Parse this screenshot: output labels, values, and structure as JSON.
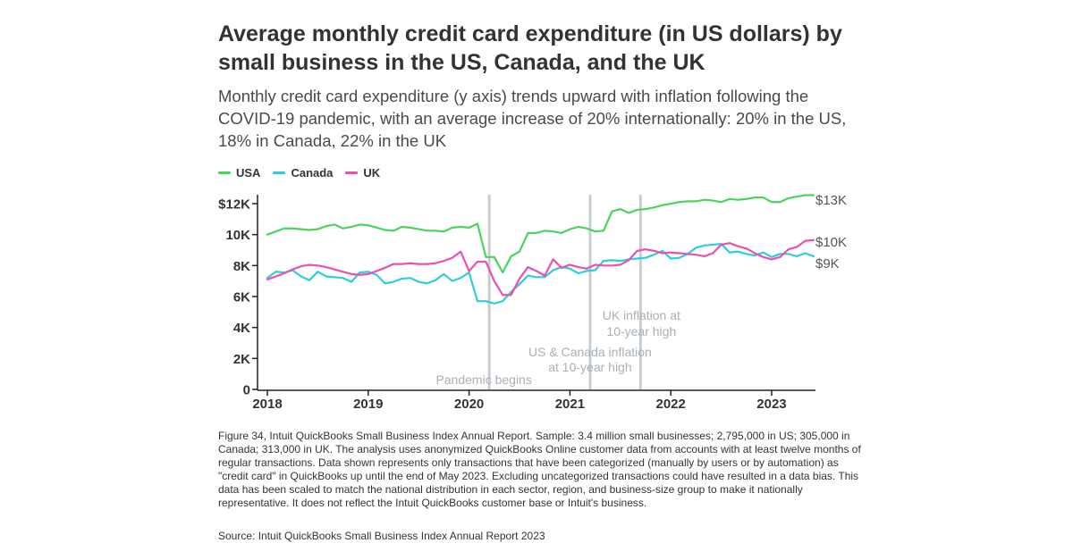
{
  "header": {
    "title": "Average monthly credit card expenditure (in US dollars) by small business in the US, Canada, and the UK",
    "subtitle": "Monthly credit card expenditure (y axis) trends upward with inflation following the COVID-19 pandemic, with an average increase of 20% internationally: 20% in the US, 18% in Canada, 22% in the UK"
  },
  "colors": {
    "USA": "#4cd35c",
    "Canada": "#2ccfd8",
    "UK": "#ea4fb2",
    "event_line": "#c7ccd1",
    "axis": "#222222",
    "annotation_text": "#a9b0b6"
  },
  "chart_data": {
    "type": "line",
    "x_unit": "month",
    "x_start": "2018-01",
    "x_end": "2023-05",
    "xlim": [
      2018.0,
      2023.417
    ],
    "ylim": [
      0,
      12000
    ],
    "x_ticks": [
      {
        "value": 2018,
        "label": "2018"
      },
      {
        "value": 2019,
        "label": "2019"
      },
      {
        "value": 2020,
        "label": "2020"
      },
      {
        "value": 2021,
        "label": "2021"
      },
      {
        "value": 2022,
        "label": "2022"
      },
      {
        "value": 2023,
        "label": "2023"
      }
    ],
    "y_ticks": [
      {
        "value": 0,
        "label": "0"
      },
      {
        "value": 2000,
        "label": "2K"
      },
      {
        "value": 4000,
        "label": "4K"
      },
      {
        "value": 6000,
        "label": "6K"
      },
      {
        "value": 8000,
        "label": "8K"
      },
      {
        "value": 10000,
        "label": "10K"
      },
      {
        "value": 12000,
        "label": "$12K"
      }
    ],
    "series": [
      {
        "name": "USA",
        "end_label": "$13K",
        "values": [
          10000,
          10200,
          10400,
          10400,
          10350,
          10300,
          10350,
          10550,
          10650,
          10400,
          10500,
          10650,
          10600,
          10450,
          10300,
          10250,
          10500,
          10450,
          10350,
          10250,
          10250,
          10200,
          10450,
          10500,
          10450,
          10700,
          8550,
          8550,
          7550,
          8600,
          8900,
          10100,
          10100,
          10250,
          10200,
          10100,
          10350,
          10500,
          10400,
          10200,
          10250,
          11500,
          11650,
          11400,
          11600,
          11650,
          11750,
          11900,
          12000,
          12100,
          12150,
          12150,
          12250,
          12200,
          12100,
          12300,
          12250,
          12300,
          12400,
          12400,
          12100,
          12100,
          12350,
          12450,
          12550,
          12550
        ]
      },
      {
        "name": "Canada",
        "end_label": "$9K",
        "values": [
          7200,
          7600,
          7550,
          7700,
          7300,
          7050,
          7600,
          7300,
          7250,
          7200,
          6950,
          7550,
          7600,
          7400,
          6850,
          6950,
          7150,
          7200,
          6950,
          6850,
          7050,
          7450,
          7000,
          7200,
          7550,
          5700,
          5700,
          5550,
          5700,
          6300,
          6800,
          7350,
          7250,
          7250,
          7700,
          7900,
          7800,
          7500,
          7650,
          7700,
          8300,
          8350,
          8300,
          8400,
          8450,
          8500,
          8700,
          8950,
          8450,
          8500,
          8750,
          9150,
          9300,
          9350,
          9400,
          8850,
          8900,
          8750,
          8650,
          8850,
          8550,
          8750,
          8750,
          8600,
          8800,
          8600
        ]
      },
      {
        "name": "UK",
        "end_label": "$10K",
        "values": [
          7100,
          7300,
          7500,
          7750,
          7950,
          8050,
          8000,
          7900,
          7750,
          7600,
          7450,
          7400,
          7450,
          7650,
          7850,
          8100,
          8100,
          8150,
          8100,
          8100,
          8150,
          8300,
          8500,
          8900,
          7650,
          8250,
          8250,
          7000,
          6100,
          6100,
          7150,
          7900,
          7650,
          7350,
          8400,
          7850,
          8050,
          7900,
          7800,
          8050,
          8000,
          8000,
          8050,
          8350,
          8950,
          9050,
          8950,
          8800,
          8850,
          8800,
          8750,
          8700,
          8600,
          8800,
          9350,
          9450,
          9250,
          9100,
          8800,
          8550,
          8400,
          8550,
          9050,
          9200,
          9600,
          9650
        ]
      }
    ],
    "events": [
      {
        "x": 2020.2,
        "label": [
          "Pandemic begins"
        ]
      },
      {
        "x": 2021.2,
        "label": [
          "US & Canada inflation",
          "at 10-year high"
        ]
      },
      {
        "x": 2021.7,
        "label": [
          "UK inflation at",
          "10-year high"
        ]
      }
    ]
  },
  "footnote": "Figure 34, Intuit QuickBooks Small Business Index Annual Report. Sample: 3.4 million small businesses; 2,795,000 in US; 305,000 in Canada; 313,000 in UK. The analysis uses anonymized QuickBooks Online customer data from accounts with at least twelve months of regular transactions. Data shown represents only transactions that have been categorized (manually by users or by automation) as \"credit card\" in QuickBooks up until the end of May 2023. Excluding uncategorized transactions could have resulted in a data bias. This data has been scaled to match the national distribution in each sector, region, and business-size group to make it nationally representative. It does not reflect the Intuit QuickBooks customer base or Intuit's business.",
  "source": "Source: Intuit QuickBooks Small Business Index Annual Report 2023"
}
